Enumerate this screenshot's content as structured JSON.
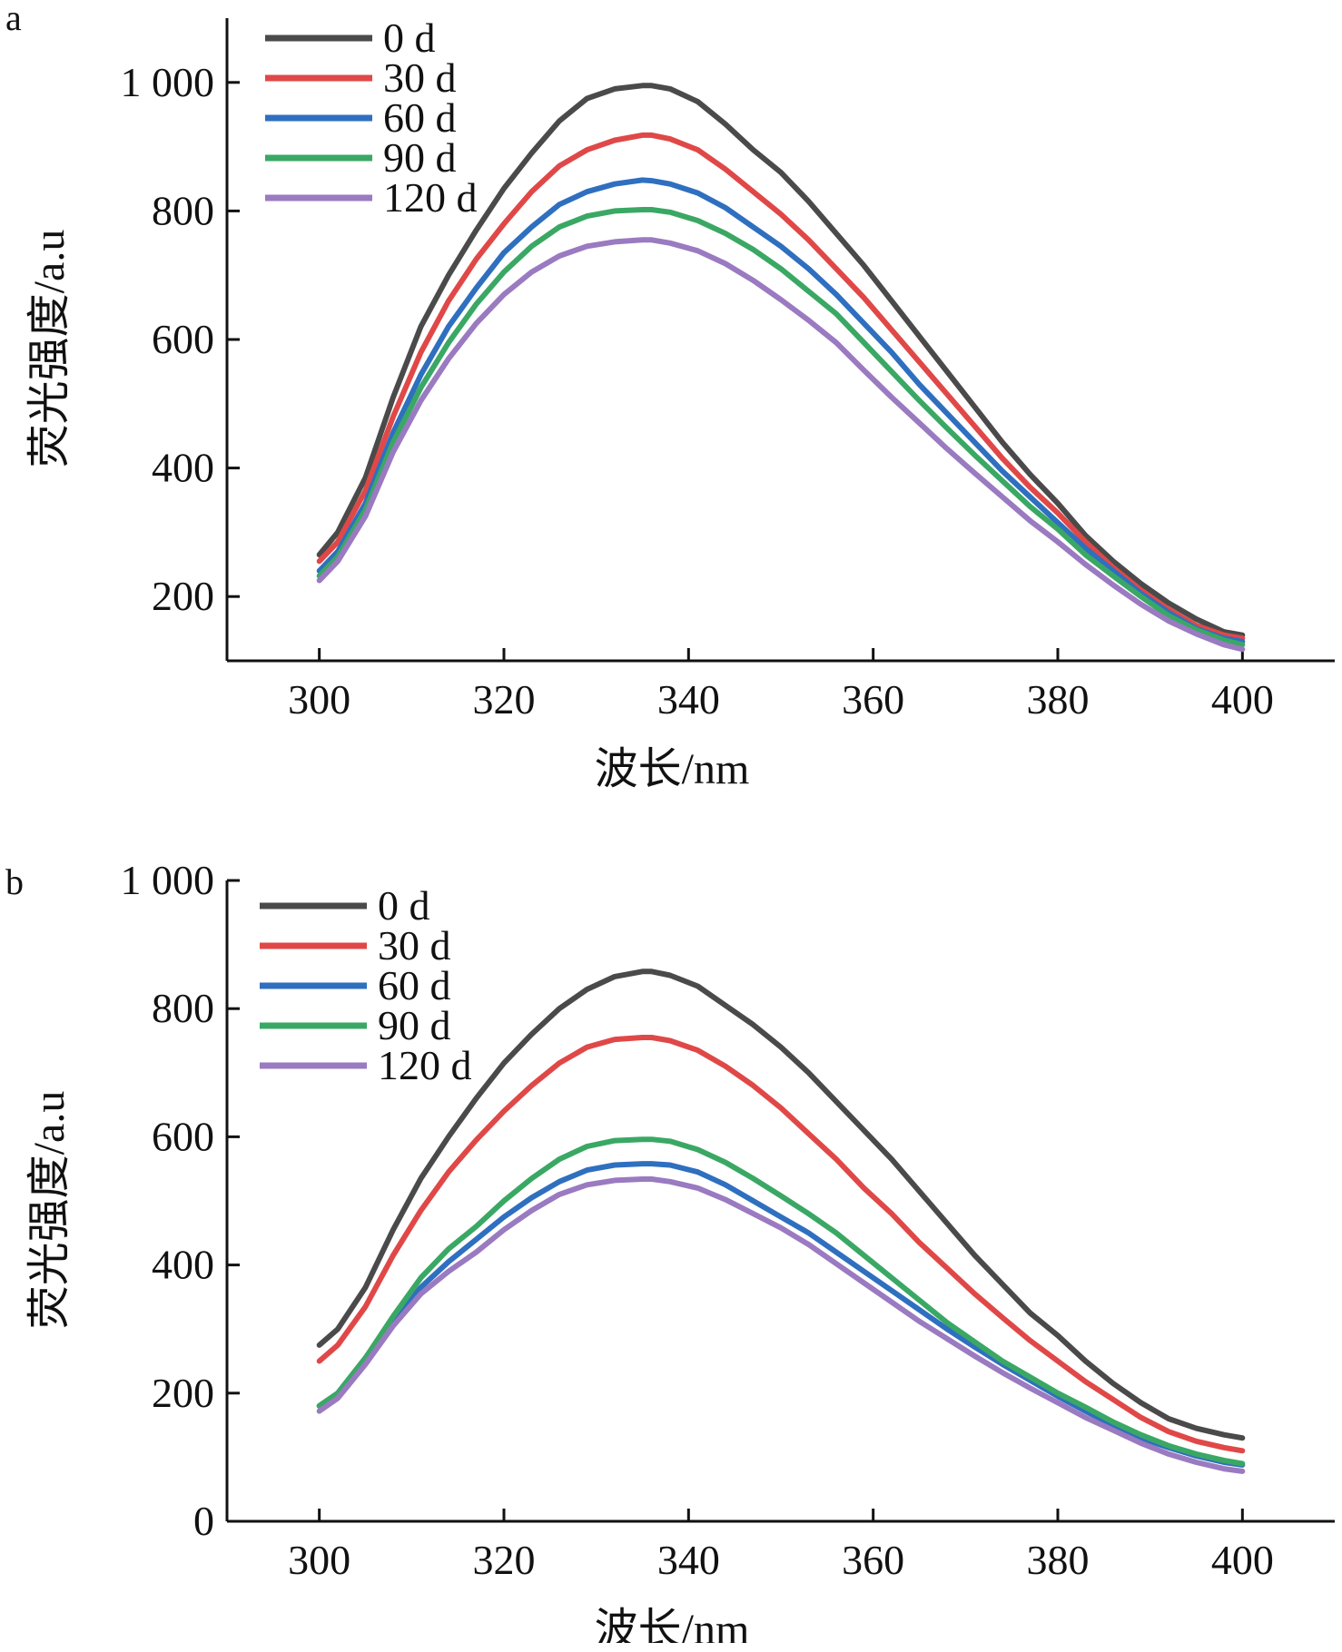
{
  "chart_data": [
    {
      "type": "line",
      "panel": "a",
      "xlabel": "波长/nm",
      "ylabel": "荧光强度/a.u",
      "xlim": [
        290,
        410
      ],
      "ylim": [
        100,
        1100
      ],
      "xticks": [
        "300",
        "320",
        "340",
        "360",
        "380",
        "400"
      ],
      "yticks": [
        {
          "value": 200,
          "label": "200"
        },
        {
          "value": 400,
          "label": "400"
        },
        {
          "value": 600,
          "label": "600"
        },
        {
          "value": 800,
          "label": "800"
        },
        {
          "value": 1000,
          "label": "1 000"
        }
      ],
      "grid": false,
      "legend_position": "top-left",
      "x": [
        300,
        302,
        305,
        308,
        311,
        314,
        317,
        320,
        323,
        326,
        329,
        332,
        335,
        336,
        338,
        341,
        344,
        347,
        350,
        353,
        356,
        359,
        362,
        365,
        368,
        371,
        374,
        377,
        380,
        383,
        386,
        389,
        392,
        395,
        398,
        400
      ],
      "series": [
        {
          "name": "0 d",
          "color": "#4a4a4a",
          "values": [
            265,
            300,
            385,
            510,
            620,
            700,
            770,
            835,
            890,
            940,
            975,
            990,
            995,
            995,
            990,
            970,
            935,
            895,
            860,
            815,
            765,
            715,
            660,
            605,
            550,
            495,
            440,
            390,
            345,
            295,
            255,
            220,
            190,
            165,
            145,
            140
          ]
        },
        {
          "name": "30 d",
          "color": "#e04848",
          "values": [
            255,
            285,
            365,
            480,
            580,
            660,
            725,
            780,
            830,
            870,
            895,
            910,
            918,
            918,
            912,
            895,
            865,
            830,
            795,
            755,
            710,
            665,
            615,
            565,
            515,
            465,
            415,
            370,
            330,
            285,
            245,
            210,
            180,
            155,
            140,
            135
          ]
        },
        {
          "name": "60 d",
          "color": "#2f6fbf",
          "values": [
            240,
            270,
            345,
            455,
            545,
            620,
            680,
            735,
            775,
            810,
            830,
            842,
            848,
            847,
            842,
            828,
            805,
            775,
            745,
            710,
            670,
            625,
            580,
            530,
            485,
            440,
            395,
            355,
            315,
            275,
            240,
            205,
            175,
            150,
            135,
            130
          ]
        },
        {
          "name": "90 d",
          "color": "#3aa864",
          "values": [
            232,
            262,
            335,
            440,
            525,
            595,
            655,
            705,
            745,
            775,
            792,
            800,
            802,
            802,
            798,
            785,
            765,
            740,
            710,
            675,
            640,
            595,
            550,
            505,
            462,
            420,
            380,
            340,
            305,
            265,
            232,
            200,
            170,
            148,
            132,
            125
          ]
        },
        {
          "name": "120 d",
          "color": "#9a7ac0",
          "values": [
            225,
            255,
            325,
            425,
            505,
            570,
            625,
            670,
            705,
            730,
            745,
            752,
            755,
            755,
            750,
            738,
            718,
            692,
            662,
            630,
            595,
            552,
            510,
            470,
            430,
            392,
            355,
            318,
            285,
            250,
            218,
            188,
            162,
            142,
            125,
            118
          ]
        }
      ]
    },
    {
      "type": "line",
      "panel": "b",
      "xlabel": "波长/nm",
      "ylabel": "荧光强度/a.u",
      "xlim": [
        290,
        410
      ],
      "ylim": [
        0,
        1000
      ],
      "xticks": [
        "300",
        "320",
        "340",
        "360",
        "380",
        "400"
      ],
      "yticks": [
        {
          "value": 0,
          "label": "0"
        },
        {
          "value": 200,
          "label": "200"
        },
        {
          "value": 400,
          "label": "400"
        },
        {
          "value": 600,
          "label": "600"
        },
        {
          "value": 800,
          "label": "800"
        },
        {
          "value": 1000,
          "label": "1 000"
        }
      ],
      "grid": false,
      "legend_position": "top-left",
      "x": [
        300,
        302,
        305,
        308,
        311,
        314,
        317,
        320,
        323,
        326,
        329,
        332,
        335,
        336,
        338,
        341,
        344,
        347,
        350,
        353,
        356,
        359,
        362,
        365,
        368,
        371,
        374,
        377,
        380,
        383,
        386,
        389,
        392,
        395,
        398,
        400
      ],
      "series": [
        {
          "name": "0 d",
          "color": "#4a4a4a",
          "values": [
            275,
            300,
            365,
            455,
            535,
            600,
            660,
            715,
            760,
            800,
            830,
            850,
            858,
            858,
            852,
            835,
            805,
            775,
            740,
            700,
            655,
            610,
            565,
            515,
            465,
            415,
            370,
            325,
            290,
            250,
            215,
            185,
            160,
            145,
            135,
            130
          ]
        },
        {
          "name": "30 d",
          "color": "#e04848",
          "values": [
            250,
            275,
            335,
            415,
            485,
            545,
            595,
            640,
            680,
            715,
            740,
            752,
            755,
            755,
            750,
            735,
            710,
            680,
            645,
            605,
            565,
            520,
            480,
            435,
            395,
            355,
            318,
            282,
            250,
            218,
            190,
            162,
            140,
            125,
            115,
            110
          ]
        },
        {
          "name": "60 d",
          "color": "#2f6fbf",
          "values": [
            180,
            200,
            255,
            315,
            365,
            405,
            440,
            475,
            505,
            530,
            548,
            556,
            558,
            558,
            556,
            545,
            525,
            500,
            475,
            450,
            420,
            390,
            360,
            330,
            300,
            272,
            245,
            220,
            195,
            172,
            150,
            130,
            115,
            102,
            92,
            88
          ]
        },
        {
          "name": "90 d",
          "color": "#3aa864",
          "values": [
            180,
            200,
            255,
            320,
            380,
            425,
            460,
            500,
            535,
            565,
            585,
            594,
            596,
            596,
            593,
            580,
            560,
            535,
            508,
            480,
            450,
            415,
            380,
            345,
            310,
            280,
            250,
            225,
            200,
            178,
            155,
            135,
            118,
            105,
            95,
            90
          ]
        },
        {
          "name": "120 d",
          "color": "#9a7ac0",
          "values": [
            172,
            192,
            245,
            305,
            355,
            390,
            420,
            455,
            485,
            510,
            525,
            532,
            534,
            534,
            530,
            520,
            502,
            480,
            458,
            432,
            402,
            372,
            342,
            312,
            285,
            258,
            232,
            208,
            185,
            162,
            142,
            122,
            105,
            92,
            82,
            78
          ]
        }
      ]
    }
  ],
  "panels": [
    {
      "label": "a"
    },
    {
      "label": "b"
    }
  ]
}
